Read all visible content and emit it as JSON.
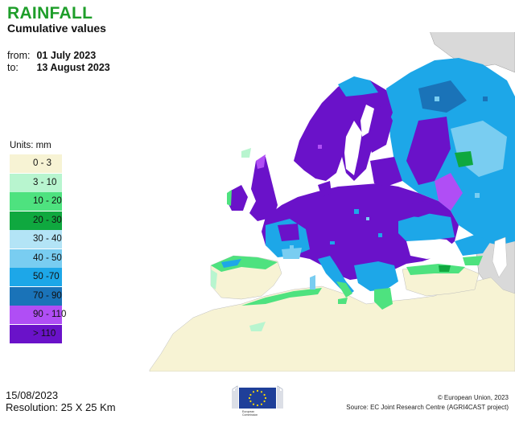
{
  "header": {
    "title": "RAINFALL",
    "subtitle": "Cumulative values"
  },
  "period": {
    "from_label": "from:",
    "from_value": "01 July 2023",
    "to_label": "to:",
    "to_value": "13 August 2023"
  },
  "legend": {
    "units_label": "Units: mm",
    "items": [
      {
        "label": "0 - 3",
        "color": "#f7f3d4"
      },
      {
        "label": "3 - 10",
        "color": "#b8f5cf"
      },
      {
        "label": "10 - 20",
        "color": "#4ee27f"
      },
      {
        "label": "20 - 30",
        "color": "#0fa83f"
      },
      {
        "label": "30 - 40",
        "color": "#b3e4f6"
      },
      {
        "label": "40 - 50",
        "color": "#79cdf1"
      },
      {
        "label": "50 -70",
        "color": "#1da7e8"
      },
      {
        "label": "70 - 90",
        "color": "#1a73b8"
      },
      {
        "label": "90 - 110",
        "color": "#b04ef5"
      },
      {
        "label": "> 110",
        "color": "#6a12c9"
      }
    ]
  },
  "footer": {
    "date": "15/08/2023",
    "resolution": "Resolution: 25 X 25 Km",
    "copyright": "© European Union, 2023",
    "source": "Source: EC Joint Research Centre (AGRI4CAST project)"
  },
  "logo": {
    "line1": "European",
    "line2": "Commission"
  },
  "colors": {
    "land_outside": "#d9d9d9",
    "map_stroke": "#9a9a9a"
  }
}
